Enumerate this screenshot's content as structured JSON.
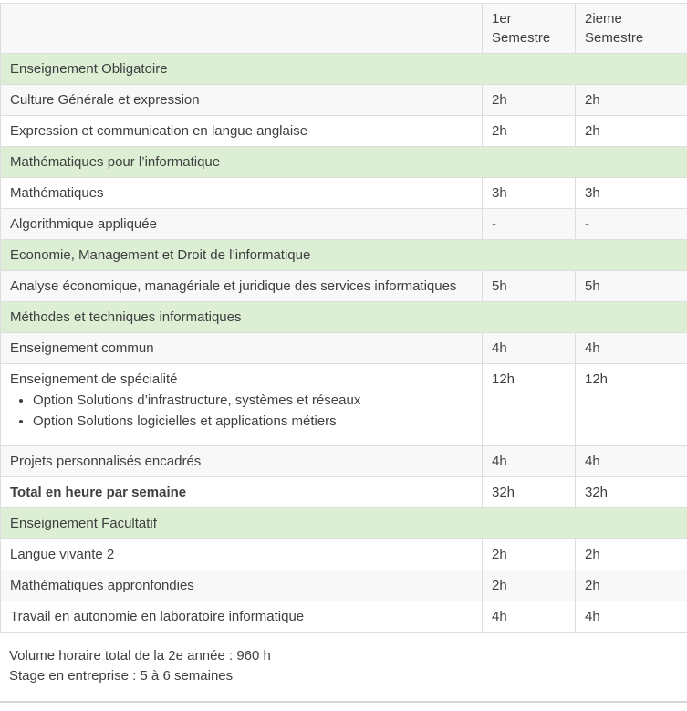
{
  "table": {
    "header": {
      "course_col": "",
      "sem1_col": "1er Semestre",
      "sem2_col": "2ieme Semestre"
    },
    "rows": [
      {
        "type": "section",
        "label": "Enseignement Obligatoire"
      },
      {
        "type": "course",
        "label": "Culture Générale et expression",
        "s1": "2h",
        "s2": "2h"
      },
      {
        "type": "course",
        "label": "Expression et communication en langue anglaise",
        "s1": "2h",
        "s2": "2h"
      },
      {
        "type": "section",
        "label": "Mathématiques pour l’informatique"
      },
      {
        "type": "course",
        "label": "Mathématiques",
        "s1": "3h",
        "s2": "3h"
      },
      {
        "type": "course",
        "label": "Algorithmique appliquée",
        "s1": "-",
        "s2": "-"
      },
      {
        "type": "section",
        "label": "Economie, Management et Droit de l’informatique"
      },
      {
        "type": "course",
        "label": "Analyse économique, managériale et juridique des services informatiques",
        "s1": "5h",
        "s2": "5h"
      },
      {
        "type": "section",
        "label": "Méthodes et techniques informatiques"
      },
      {
        "type": "course",
        "label": "Enseignement commun",
        "s1": "4h",
        "s2": "4h"
      },
      {
        "type": "course",
        "label": "Enseignement de spécialité",
        "bullets": [
          "Option Solutions d’infrastructure, systèmes et réseaux",
          "Option Solutions logicielles et applications métiers"
        ],
        "s1": "12h",
        "s2": "12h"
      },
      {
        "type": "course",
        "label": "Projets personnalisés encadrés",
        "s1": "4h",
        "s2": "4h"
      },
      {
        "type": "total",
        "label": "Total en heure par semaine",
        "s1": "32h",
        "s2": "32h"
      },
      {
        "type": "section",
        "label": "Enseignement Facultatif"
      },
      {
        "type": "course",
        "label": "Langue vivante 2",
        "s1": "2h",
        "s2": "2h"
      },
      {
        "type": "course",
        "label": "Mathématiques appronfondies",
        "s1": "2h",
        "s2": "2h"
      },
      {
        "type": "course",
        "label": "Travail en autonomie en laboratoire informatique",
        "s1": "4h",
        "s2": "4h"
      }
    ]
  },
  "footer": {
    "line1": "Volume horaire total de la 2e année : 960 h",
    "line2": "Stage en entreprise : 5 à 6 semaines"
  },
  "colors": {
    "section_bg": "#dcefd5",
    "stripe_bg": "#f8f8f8",
    "border": "#dddddd",
    "text": "#3f3f3f"
  }
}
